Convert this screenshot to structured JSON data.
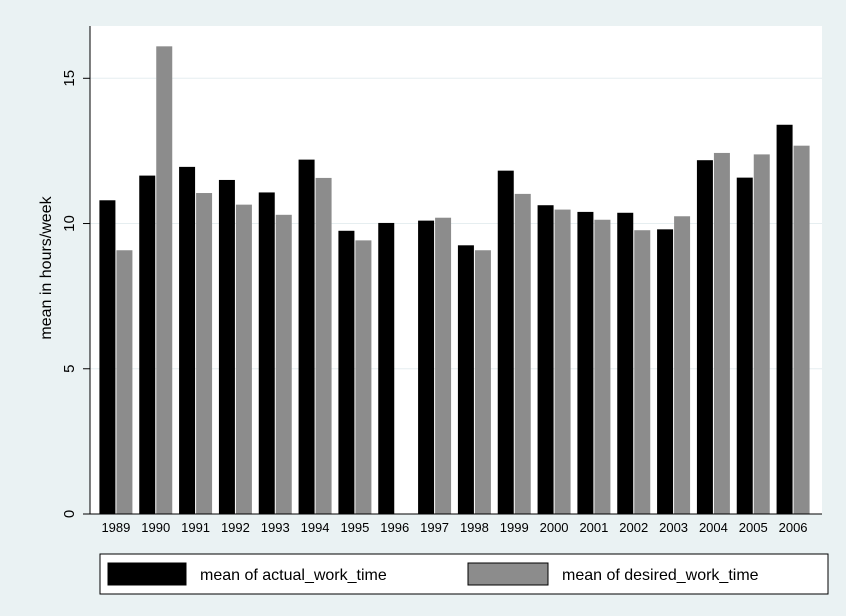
{
  "chart_data": {
    "type": "bar",
    "title": "",
    "xlabel": "",
    "ylabel": "mean in hours/week",
    "ylim": [
      0,
      16.8
    ],
    "yticks": [
      0,
      5,
      10,
      15
    ],
    "grid": true,
    "legend_position": "bottom",
    "categories": [
      "1989",
      "1990",
      "1991",
      "1992",
      "1993",
      "1994",
      "1995",
      "1996",
      "1997",
      "1998",
      "1999",
      "2000",
      "2001",
      "2002",
      "2003",
      "2004",
      "2005",
      "2006"
    ],
    "series": [
      {
        "name": "mean of actual_work_time",
        "color": "#000000",
        "values": [
          10.8,
          11.65,
          11.95,
          11.5,
          11.07,
          12.2,
          9.75,
          10.02,
          10.1,
          9.25,
          11.82,
          10.63,
          10.4,
          10.37,
          9.8,
          12.18,
          11.58,
          13.4
        ]
      },
      {
        "name": "mean of desired_work_time",
        "color": "#8c8c8c",
        "values": [
          9.08,
          16.1,
          11.05,
          10.65,
          10.3,
          11.57,
          9.42,
          null,
          10.2,
          9.08,
          11.02,
          10.48,
          10.13,
          9.77,
          10.25,
          12.43,
          12.38,
          12.68
        ]
      }
    ]
  }
}
